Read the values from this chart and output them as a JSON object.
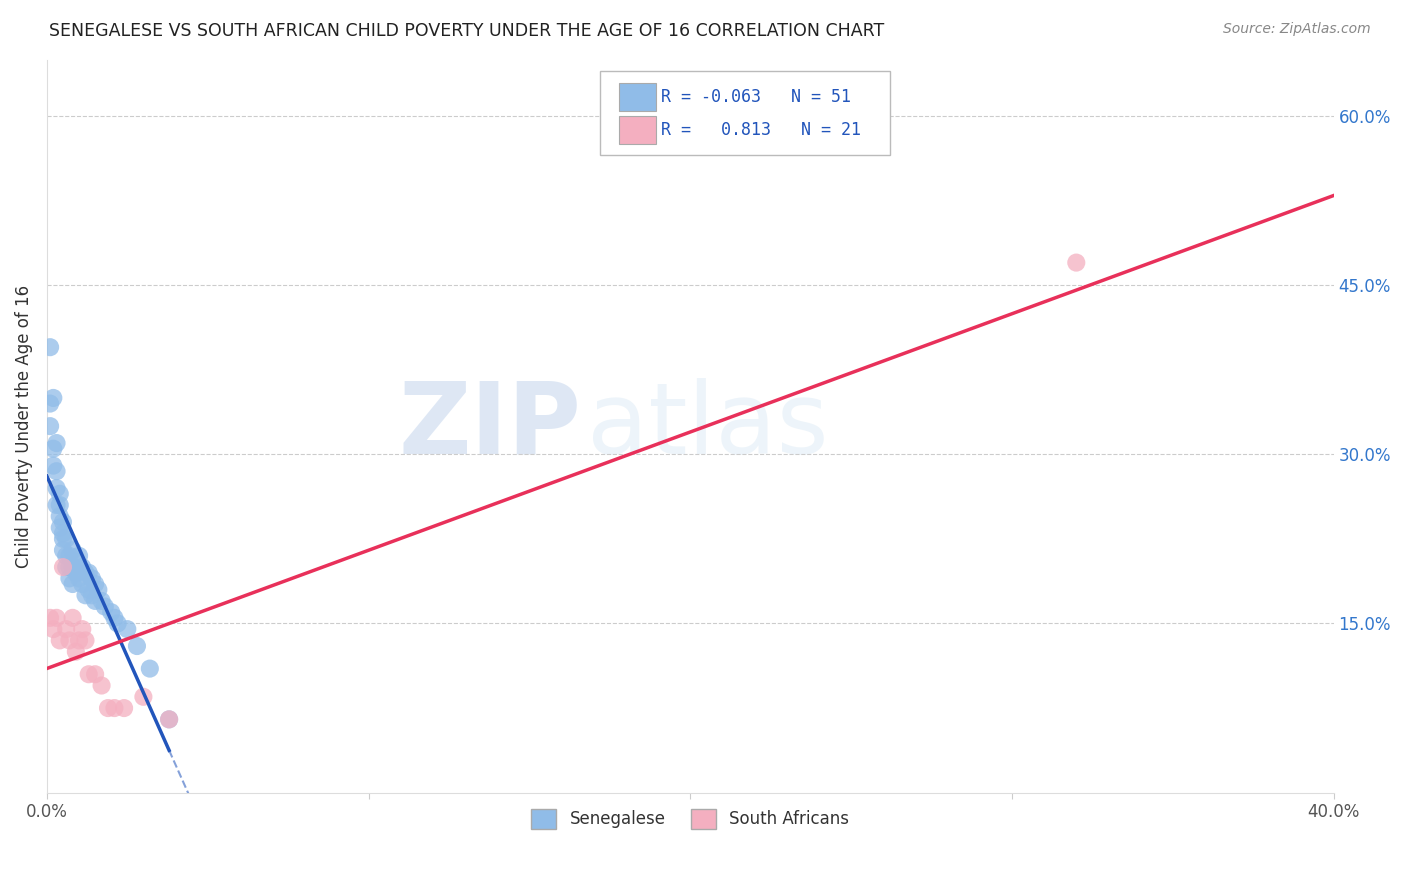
{
  "title": "SENEGALESE VS SOUTH AFRICAN CHILD POVERTY UNDER THE AGE OF 16 CORRELATION CHART",
  "source": "Source: ZipAtlas.com",
  "ylabel": "Child Poverty Under the Age of 16",
  "xlim": [
    0.0,
    0.4
  ],
  "ylim": [
    0.0,
    0.65
  ],
  "xtick_positions": [
    0.0,
    0.1,
    0.2,
    0.3,
    0.4
  ],
  "xticklabels": [
    "0.0%",
    "",
    "",
    "",
    "40.0%"
  ],
  "ytick_positions": [
    0.15,
    0.3,
    0.45,
    0.6
  ],
  "ytick_labels": [
    "15.0%",
    "30.0%",
    "45.0%",
    "60.0%"
  ],
  "senegalese_R": "-0.063",
  "senegalese_N": "51",
  "south_african_R": "0.813",
  "south_african_N": "21",
  "legend_label_1": "Senegalese",
  "legend_label_2": "South Africans",
  "blue_color": "#90bce8",
  "pink_color": "#f4afc0",
  "blue_line_color": "#2255bb",
  "pink_line_color": "#e8305a",
  "watermark_zip": "ZIP",
  "watermark_atlas": "atlas",
  "senegalese_x": [
    0.001,
    0.001,
    0.001,
    0.002,
    0.002,
    0.002,
    0.003,
    0.003,
    0.003,
    0.003,
    0.004,
    0.004,
    0.004,
    0.004,
    0.005,
    0.005,
    0.005,
    0.005,
    0.006,
    0.006,
    0.006,
    0.007,
    0.007,
    0.007,
    0.008,
    0.008,
    0.008,
    0.009,
    0.009,
    0.01,
    0.01,
    0.011,
    0.011,
    0.012,
    0.012,
    0.013,
    0.013,
    0.014,
    0.014,
    0.015,
    0.015,
    0.016,
    0.017,
    0.018,
    0.02,
    0.021,
    0.022,
    0.025,
    0.028,
    0.032,
    0.038
  ],
  "senegalese_y": [
    0.395,
    0.345,
    0.325,
    0.35,
    0.305,
    0.29,
    0.31,
    0.285,
    0.27,
    0.255,
    0.265,
    0.255,
    0.245,
    0.235,
    0.24,
    0.23,
    0.225,
    0.215,
    0.225,
    0.21,
    0.2,
    0.21,
    0.2,
    0.19,
    0.215,
    0.2,
    0.185,
    0.205,
    0.195,
    0.21,
    0.19,
    0.2,
    0.185,
    0.195,
    0.175,
    0.195,
    0.18,
    0.19,
    0.175,
    0.185,
    0.17,
    0.18,
    0.17,
    0.165,
    0.16,
    0.155,
    0.15,
    0.145,
    0.13,
    0.11,
    0.065
  ],
  "south_african_x": [
    0.001,
    0.002,
    0.003,
    0.004,
    0.005,
    0.006,
    0.007,
    0.008,
    0.009,
    0.01,
    0.011,
    0.012,
    0.013,
    0.015,
    0.017,
    0.019,
    0.021,
    0.024,
    0.03,
    0.038,
    0.32
  ],
  "south_african_y": [
    0.155,
    0.145,
    0.155,
    0.135,
    0.2,
    0.145,
    0.135,
    0.155,
    0.125,
    0.135,
    0.145,
    0.135,
    0.105,
    0.105,
    0.095,
    0.075,
    0.075,
    0.075,
    0.085,
    0.065,
    0.47
  ],
  "blue_line_x0": 0.0,
  "blue_line_x_solid_end": 0.038,
  "blue_line_x_dash_end": 0.4,
  "pink_line_x0": 0.0,
  "pink_line_x1": 0.4
}
